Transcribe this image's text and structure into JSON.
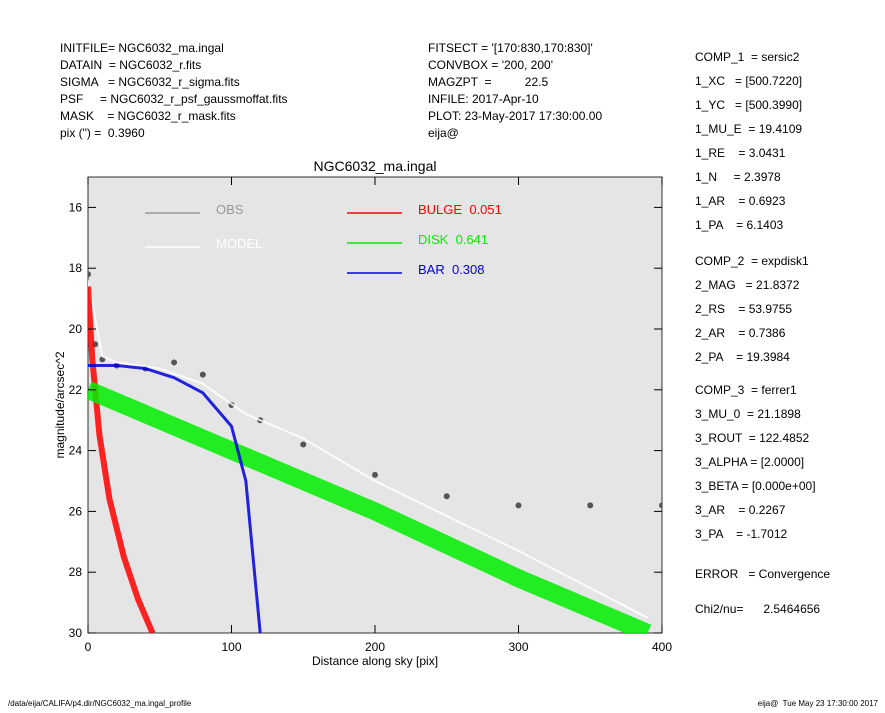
{
  "header": {
    "left": [
      "INITFILE= NGC6032_ma.ingal",
      "DATAIN  = NGC6032_r.fits",
      "SIGMA   = NGC6032_r_sigma.fits",
      "PSF     = NGC6032_r_psf_gaussmoffat.fits",
      "MASK    = NGC6032_r_mask.fits",
      "pix (\") =  0.3960"
    ],
    "middle": [
      "FITSECT = '[170:830,170:830]'",
      "CONVBOX = '200, 200'",
      "MAGZPT  =          22.5",
      "INFILE: 2017-Apr-10",
      "PLOT: 23-May-2017 17:30:00.00",
      "eija@"
    ],
    "right": [
      [
        "COMP_1  = sersic2",
        "1_XC   = [500.7220]",
        "1_YC   = [500.3990]",
        "1_MU_E  = 19.4109",
        "1_RE    = 3.0431",
        "1_N     = 2.3978",
        "1_AR    = 0.6923",
        "1_PA    = 6.1403"
      ],
      [
        "COMP_2  = expdisk1",
        "2_MAG   = 21.8372",
        "2_RS    = 53.9755",
        "2_AR    = 0.7386",
        "2_PA    = 19.3984"
      ],
      [
        "COMP_3  = ferrer1",
        "3_MU_0  = 21.1898",
        "3_ROUT  = 122.4852",
        "3_ALPHA = [2.0000]",
        "3_BETA = [0.000e+00]",
        "3_AR    = 0.2267",
        "3_PA    = -1.7012"
      ],
      [
        "ERROR   = Convergence"
      ],
      [
        "Chi2/nu=      2.5464656"
      ]
    ]
  },
  "footer": {
    "left": "/data/eija/CALIFA/p4.dir/NGC6032_ma.ingal_profile",
    "right": "eija@  Tue May 23 17:30:00 2017"
  },
  "chart_data": {
    "type": "line",
    "title": "NGC6032_ma.ingal",
    "x_label": "Distance along sky [pix]",
    "y_label": "magnitude/arcsec^2",
    "xlim": [
      0,
      400
    ],
    "xticks": [
      0,
      100,
      200,
      300,
      400
    ],
    "ylim": [
      30,
      15
    ],
    "yticks": [
      16,
      18,
      20,
      22,
      24,
      26,
      28,
      30
    ],
    "series": [
      {
        "name": "OBS",
        "color": "#555555",
        "legend_color": "#999999",
        "mode": "points",
        "x": [
          0,
          5,
          10,
          20,
          40,
          60,
          80,
          100,
          120,
          150,
          200,
          250,
          300,
          350,
          400
        ],
        "values": [
          18.2,
          20.5,
          21,
          21.2,
          21.3,
          21.1,
          21.5,
          22.5,
          23,
          23.8,
          24.8,
          25.5,
          25.8,
          25.8,
          25.8
        ]
      },
      {
        "name": "MODEL",
        "color": "#ffffff",
        "mode": "line",
        "x": [
          0,
          10,
          20,
          50,
          80,
          110,
          150,
          200,
          300,
          390
        ],
        "values": [
          18.4,
          20.9,
          21.1,
          21.3,
          21.8,
          22.8,
          23.6,
          25,
          27.3,
          29.5
        ]
      },
      {
        "name": "BULGE",
        "fraction": 0.051,
        "color": "#ff0000",
        "mode": "line",
        "x": [
          0,
          3,
          8,
          15,
          25,
          35,
          45
        ],
        "values": [
          18.6,
          21,
          23.5,
          25.6,
          27.5,
          28.9,
          30
        ]
      },
      {
        "name": "DISK",
        "fraction": 0.641,
        "color": "#00ee00",
        "mode": "line",
        "x": [
          0,
          100,
          200,
          300,
          390
        ],
        "values": [
          22,
          24,
          26,
          28.2,
          30
        ]
      },
      {
        "name": "BAR",
        "fraction": 0.308,
        "color": "#0000dd",
        "mode": "line",
        "x": [
          0,
          20,
          40,
          60,
          80,
          100,
          110,
          120
        ],
        "values": [
          21.2,
          21.2,
          21.3,
          21.6,
          22.1,
          23.2,
          25,
          30
        ]
      }
    ]
  }
}
